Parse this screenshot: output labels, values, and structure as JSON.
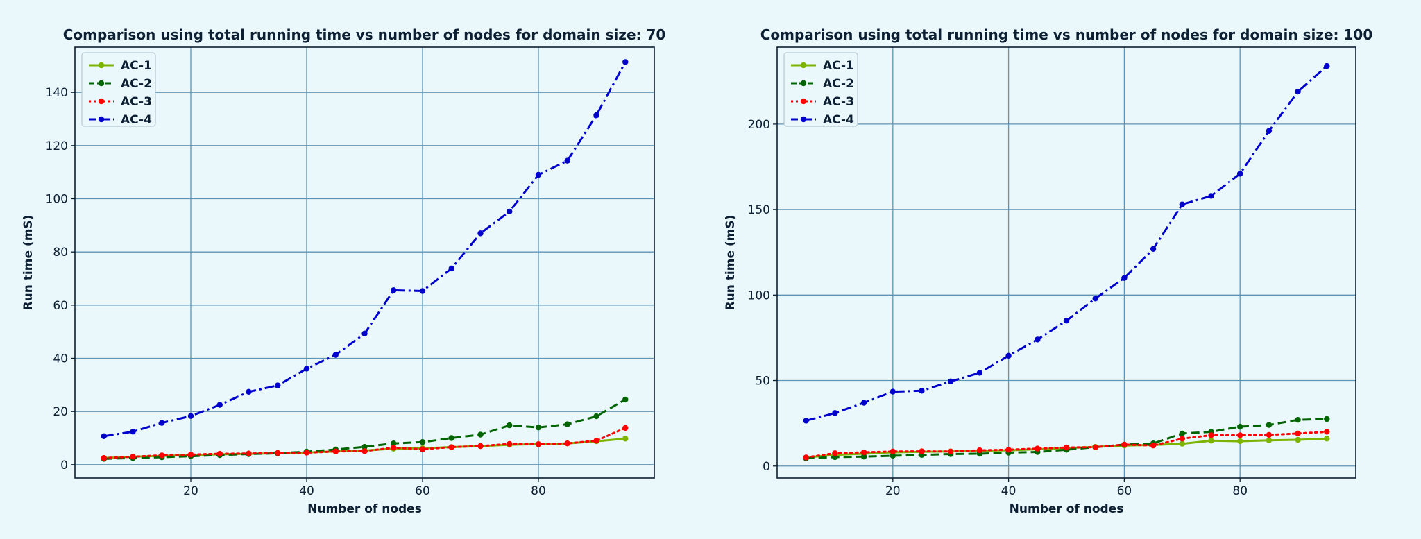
{
  "chart_data": [
    {
      "type": "line",
      "title": "Comparison using total running time vs number of nodes for domain size: 70",
      "xlabel": "Number of nodes",
      "ylabel": "Run time (mS)",
      "xlim": [
        0,
        100
      ],
      "ylim": [
        -5,
        157
      ],
      "xticks": [
        20,
        40,
        60,
        80
      ],
      "yticks": [
        0,
        20,
        40,
        60,
        80,
        100,
        120,
        140
      ],
      "grid": true,
      "legend_position": "top-left",
      "x": [
        5,
        10,
        15,
        20,
        25,
        30,
        35,
        40,
        45,
        50,
        55,
        60,
        65,
        70,
        75,
        80,
        85,
        90,
        95
      ],
      "series": [
        {
          "name": "AC-1",
          "color": "#7cb400",
          "style": "solid",
          "values": [
            2.5,
            3.0,
            3.3,
            3.6,
            3.9,
            4.1,
            4.3,
            4.6,
            5.0,
            5.3,
            6.0,
            6.2,
            6.6,
            7.0,
            7.5,
            7.7,
            8.0,
            8.8,
            9.8
          ]
        },
        {
          "name": "AC-2",
          "color": "#006400",
          "style": "dashed",
          "values": [
            2.2,
            2.5,
            2.8,
            3.2,
            3.6,
            4.0,
            4.3,
            4.9,
            5.7,
            6.7,
            8.0,
            8.5,
            10.0,
            11.3,
            14.8,
            14.0,
            15.2,
            18.2,
            24.5
          ]
        },
        {
          "name": "AC-3",
          "color": "#ff0000",
          "style": "dotted",
          "values": [
            2.5,
            3.0,
            3.5,
            3.8,
            4.1,
            4.2,
            4.4,
            4.5,
            5.0,
            5.1,
            6.4,
            5.8,
            6.6,
            7.0,
            7.8,
            7.7,
            8.0,
            9.0,
            13.8
          ]
        },
        {
          "name": "AC-4",
          "color": "#0000cd",
          "style": "dashdot",
          "values": [
            10.7,
            12.4,
            15.7,
            18.3,
            22.5,
            27.4,
            29.8,
            36.1,
            41.3,
            49.3,
            65.6,
            65.3,
            73.8,
            87.0,
            95.2,
            109.0,
            114.3,
            131.4,
            151.4
          ]
        }
      ]
    },
    {
      "type": "line",
      "title": "Comparison using total running time vs number of nodes for domain size: 100",
      "xlabel": "Number of nodes",
      "ylabel": "Run time (mS)",
      "xlim": [
        0,
        100
      ],
      "ylim": [
        -7,
        245
      ],
      "xticks": [
        20,
        40,
        60,
        80
      ],
      "yticks": [
        0,
        50,
        100,
        150,
        200
      ],
      "grid": true,
      "legend_position": "top-left",
      "x": [
        5,
        10,
        15,
        20,
        25,
        30,
        35,
        40,
        45,
        50,
        55,
        60,
        65,
        70,
        75,
        80,
        85,
        90,
        95
      ],
      "series": [
        {
          "name": "AC-1",
          "color": "#7cb400",
          "style": "solid",
          "values": [
            5.0,
            6.5,
            7.2,
            8.0,
            8.3,
            8.5,
            9.0,
            9.2,
            9.8,
            10.5,
            11.2,
            12.0,
            12.3,
            13.0,
            14.8,
            14.5,
            15.0,
            15.3,
            16.0
          ]
        },
        {
          "name": "AC-2",
          "color": "#006400",
          "style": "dashed",
          "values": [
            4.5,
            5.2,
            5.5,
            6.0,
            6.5,
            7.0,
            7.2,
            7.8,
            8.2,
            9.5,
            11.0,
            12.5,
            13.2,
            19.0,
            20.0,
            23.0,
            24.0,
            27.0,
            27.5
          ]
        },
        {
          "name": "AC-3",
          "color": "#ff0000",
          "style": "dotted",
          "values": [
            5.0,
            7.5,
            8.0,
            8.5,
            8.6,
            8.5,
            9.2,
            9.5,
            10.2,
            10.8,
            11.0,
            12.5,
            12.0,
            16.0,
            18.0,
            18.0,
            18.2,
            19.0,
            20.0
          ]
        },
        {
          "name": "AC-4",
          "color": "#0000cd",
          "style": "dashdot",
          "values": [
            26.5,
            31.0,
            37.0,
            43.5,
            44.0,
            49.5,
            54.5,
            64.5,
            74.0,
            85.0,
            98.0,
            110.0,
            127.0,
            153.0,
            158.0,
            171.0,
            196.0,
            219.0,
            234.0
          ]
        }
      ]
    }
  ]
}
